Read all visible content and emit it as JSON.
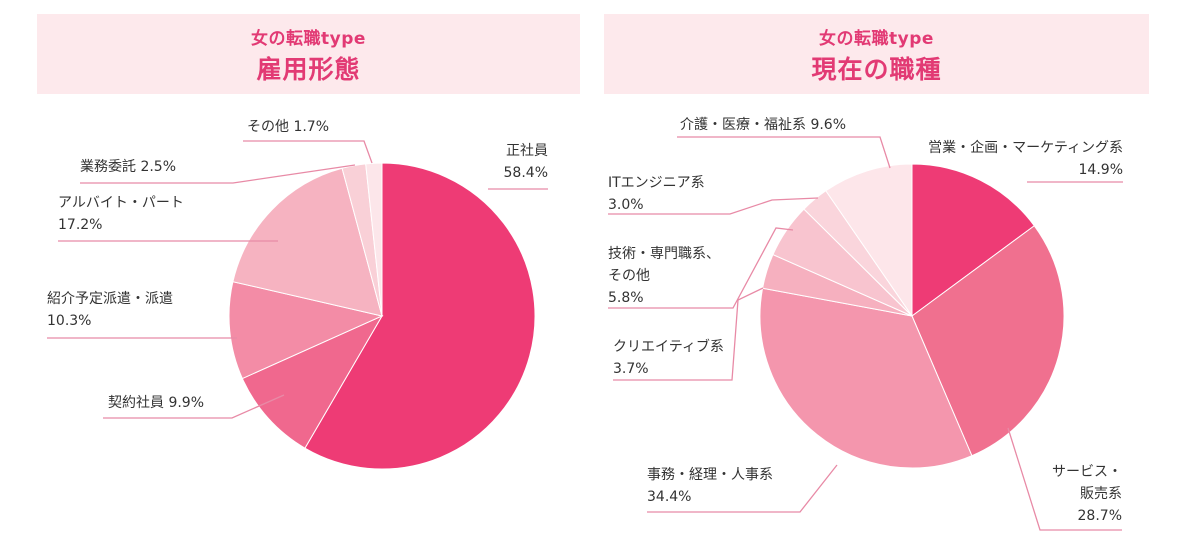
{
  "colors": {
    "accent": "#e23a74",
    "header_bg": "#fde9ec",
    "leader": "#e88aa6"
  },
  "chart_data": [
    {
      "type": "pie",
      "subtitle": "女の転職type",
      "title": "雇用形態",
      "slices": [
        {
          "name": "正社員",
          "value": 58.4,
          "color": "#ee3b75"
        },
        {
          "name": "契約社員",
          "value": 9.9,
          "color": "#f0688e"
        },
        {
          "name": "紹介予定派遣・派遣",
          "value": 10.3,
          "color": "#f38ca6"
        },
        {
          "name": "アルバイト・パート",
          "value": 17.2,
          "color": "#f6b3c1"
        },
        {
          "name": "業務委託",
          "value": 2.5,
          "color": "#f9d0d7"
        },
        {
          "name": "その他",
          "value": 1.7,
          "color": "#fce6ea"
        }
      ],
      "labels": [
        {
          "line1": "正社員",
          "line2": "58.4%"
        },
        {
          "line1": "契約社員 9.9%"
        },
        {
          "line1": "紹介予定派遣・派遣",
          "line2": "10.3%"
        },
        {
          "line1": "アルバイト・パート",
          "line2": "17.2%"
        },
        {
          "line1": "業務委託 2.5%"
        },
        {
          "line1": "その他 1.7%"
        }
      ]
    },
    {
      "type": "pie",
      "subtitle": "女の転職type",
      "title": "現在の職種",
      "slices": [
        {
          "name": "営業・企画・マーケティング系",
          "value": 14.9,
          "color": "#ee3b75"
        },
        {
          "name": "サービス・販売系",
          "value": 28.7,
          "color": "#f0708f"
        },
        {
          "name": "事務・経理・人事系",
          "value": 34.4,
          "color": "#f496ad"
        },
        {
          "name": "クリエイティブ系",
          "value": 3.7,
          "color": "#f6b0bf"
        },
        {
          "name": "技術・専門職系、その他",
          "value": 5.8,
          "color": "#f8c4cf"
        },
        {
          "name": "ITエンジニア系",
          "value": 3.0,
          "color": "#fad5dc"
        },
        {
          "name": "介護・医療・福祉系",
          "value": 9.6,
          "color": "#fde6ea"
        }
      ],
      "labels": [
        {
          "line1": "営業・企画・マーケティング系",
          "line2": "14.9%"
        },
        {
          "line1": "サービス・",
          "line2": "販売系",
          "line3": "28.7%"
        },
        {
          "line1": "事務・経理・人事系",
          "line2": "34.4%"
        },
        {
          "line1": "クリエイティブ系",
          "line2": "3.7%"
        },
        {
          "line1": "技術・専門職系、",
          "line2": "その他",
          "line3": "5.8%"
        },
        {
          "line1": "ITエンジニア系",
          "line2": "3.0%"
        },
        {
          "line1": "介護・医療・福祉系 9.6%"
        }
      ]
    }
  ]
}
